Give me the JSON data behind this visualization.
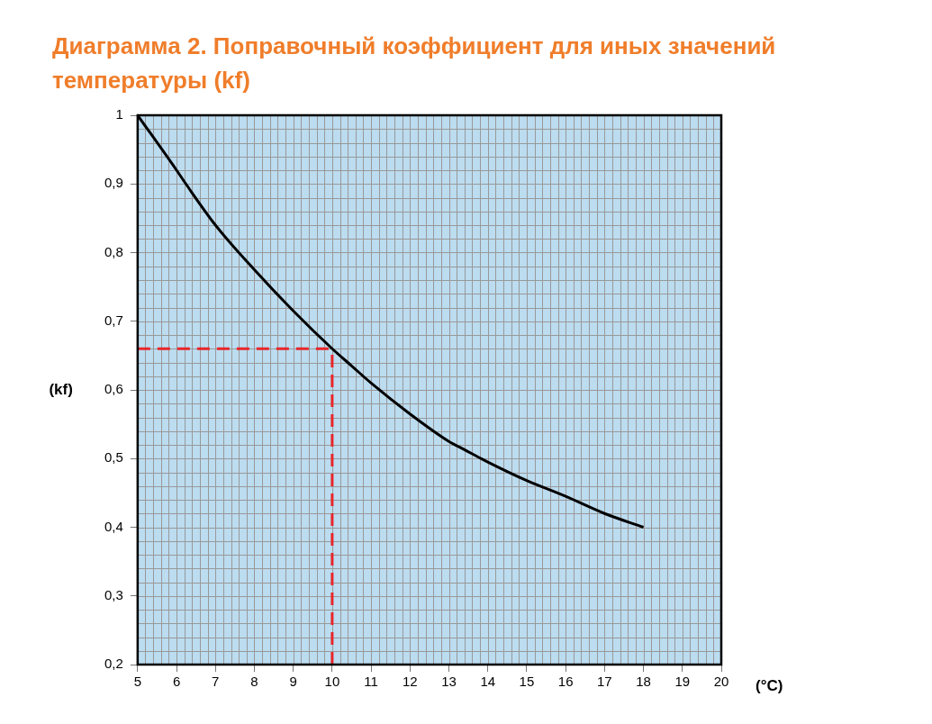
{
  "chart_data": {
    "type": "line",
    "title": "Диаграмма 2. Поправочный коэффициент для иных значений температуры (kf)",
    "xlabel": "(°C)",
    "ylabel": "(kf)",
    "x": [
      5,
      6,
      6.24,
      7,
      8,
      9,
      10,
      10.5,
      11,
      12,
      13,
      13.4,
      14,
      15,
      16,
      17,
      18
    ],
    "series": [
      {
        "color": "#000000",
        "values": [
          1,
          0.92,
          0.9,
          0.84,
          0.775,
          0.715,
          0.66,
          0.635,
          0.61,
          0.565,
          0.525,
          0.513,
          0.495,
          0.468,
          0.445,
          0.42,
          0.4
        ]
      }
    ],
    "xlim": [
      5,
      20
    ],
    "xticks": [
      5,
      6,
      7,
      8,
      9,
      10,
      11,
      12,
      13,
      14,
      15,
      16,
      17,
      18,
      19,
      20
    ],
    "ylim": [
      0.2,
      1
    ],
    "yticks": [
      {
        "value": 0.2,
        "label": "0,2"
      },
      {
        "value": 0.3,
        "label": "0,3"
      },
      {
        "value": 0.4,
        "label": "0,4"
      },
      {
        "value": 0.5,
        "label": "0,5"
      },
      {
        "value": 0.6,
        "label": "0,6"
      },
      {
        "value": 0.7,
        "label": "0,7"
      },
      {
        "value": 0.8,
        "label": "0,8"
      },
      {
        "value": 0.9,
        "label": "0,9"
      },
      {
        "value": 1,
        "label": "1"
      }
    ],
    "ref_lines": [
      {
        "axis": "x",
        "value": 10,
        "color": "#e8262a",
        "line_style": "dashed"
      },
      {
        "axis": "y",
        "value": 0.66,
        "color": "#e8262a",
        "line_style": "dashed"
      }
    ],
    "grid": true,
    "legend": false,
    "marker": "none",
    "line_style": "solid"
  }
}
